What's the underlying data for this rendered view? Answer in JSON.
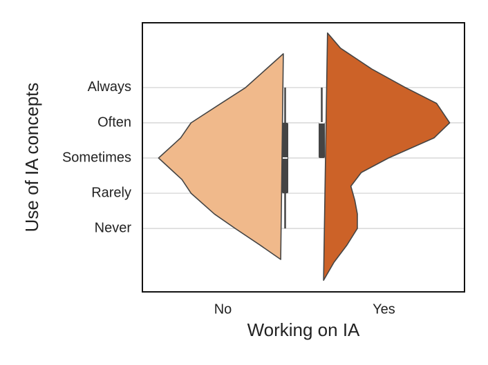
{
  "chart_data": {
    "type": "violin",
    "xlabel": "Working on IA",
    "ylabel": "Use of IA concepts",
    "categories": [
      "No",
      "Yes"
    ],
    "ylim": [
      -0.8,
      6.84
    ],
    "yticks": [
      {
        "value": 1,
        "label": "Never"
      },
      {
        "value": 2,
        "label": "Rarely"
      },
      {
        "value": 3,
        "label": "Sometimes"
      },
      {
        "value": 4,
        "label": "Often"
      },
      {
        "value": 5,
        "label": "Always"
      }
    ],
    "grid": true,
    "series": [
      {
        "name": "No",
        "color": "#f0b98b",
        "side": "left",
        "y": [
          5.96,
          5.53,
          5.0,
          4.55,
          4.0,
          3.57,
          3,
          2.39,
          2.0,
          1.41,
          1.0,
          0.53,
          0.12
        ],
        "density": [
          0.03,
          0.16,
          0.32,
          0.51,
          0.74,
          0.82,
          0.99,
          0.81,
          0.74,
          0.56,
          0.4,
          0.21,
          0.05
        ],
        "whisker_low": 1,
        "q1": 2,
        "median": 3,
        "q3": 4,
        "whisker_high": 5
      },
      {
        "name": "Yes",
        "color": "#cc6228",
        "side": "right",
        "y": [
          6.55,
          6.12,
          5.53,
          5.0,
          4.55,
          4.0,
          3.57,
          3,
          2.59,
          2.2,
          1.8,
          1.41,
          1.0,
          0.53,
          0.04,
          -0.47
        ],
        "density": [
          0.06,
          0.16,
          0.4,
          0.66,
          0.9,
          1.0,
          0.88,
          0.53,
          0.32,
          0.24,
          0.27,
          0.29,
          0.29,
          0.21,
          0.11,
          0.03
        ],
        "whisker_low": 3,
        "q1": 3,
        "median": 4,
        "q3": 4,
        "whisker_high": 5
      }
    ]
  }
}
